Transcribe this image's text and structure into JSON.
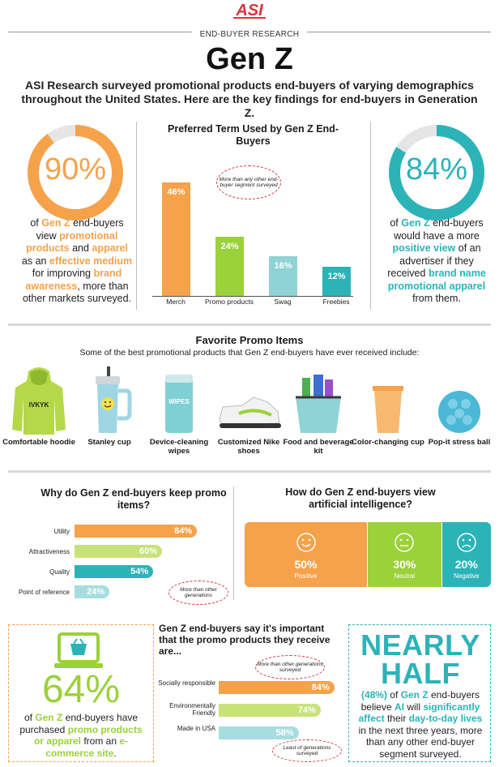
{
  "header": {
    "logo_text": "ASI",
    "subtitle": "END-BUYER RESEARCH",
    "title": "Gen Z",
    "intro": "ASI Research surveyed promotional products end-buyers of varying demographics throughout the United States. Here are the key findings for end-buyers in Generation Z."
  },
  "stat_left": {
    "pct": "90%",
    "value": 0.9,
    "text": [
      "of ",
      "Gen Z",
      " end-buyers view ",
      "promotional products",
      " and ",
      "apparel",
      " as an ",
      "effective medium",
      " for improving ",
      "brand awareness",
      ", more than other markets surveyed."
    ]
  },
  "stat_right": {
    "pct": "84%",
    "value": 0.84,
    "text": [
      "of ",
      "Gen Z",
      " end-buyers would have a more ",
      "positive view",
      " of an advertiser if they received ",
      "brand name promotional apparel",
      " from them."
    ]
  },
  "preferred_term": {
    "title": "Preferred Term Used by Gen Z End-Buyers",
    "annotation": "More than any other end-buyer segment surveyed"
  },
  "favorites": {
    "title": "Favorite Promo Items",
    "subtitle": "Some of the best promotional products that Gen Z end-buyers have ever received include:",
    "hoodie_print": "IVKYK",
    "wipes_print": "WIPES",
    "items": [
      "Comfortable hoodie",
      "Stanley cup",
      "Device-cleaning wipes",
      "Customized Nike shoes",
      "Food and beverage kit",
      "Color-changing cup",
      "Pop-it stress ball"
    ]
  },
  "keep": {
    "title": "Why do Gen Z end-buyers keep promo items?",
    "annotation": "More than other generations"
  },
  "ai": {
    "title": "How do Gen Z end-buyers view artificial intelligence?",
    "segments": [
      {
        "pct": "50%",
        "label": "Positive",
        "value": 50,
        "color": "#f5a24a"
      },
      {
        "pct": "30%",
        "label": "Neutral",
        "value": 30,
        "color": "#9bd13a"
      },
      {
        "pct": "20%",
        "label": "Negative",
        "value": 20,
        "color": "#2cb3b8"
      }
    ]
  },
  "ecommerce": {
    "pct": "64%",
    "text": [
      "of ",
      "Gen Z",
      " end-buyers have purchased ",
      "promo products or apparel",
      " from an ",
      "e-commerce site",
      "."
    ]
  },
  "important": {
    "title": "Gen Z end-buyers say it's important that the promo products they receive are...",
    "annotation_top": "More than other generations surveyed",
    "annotation_bottom": "Least of generations surveyed"
  },
  "nearly_half": {
    "headline_1": "NEARLY",
    "headline_2": "HALF",
    "text": [
      "(48%)",
      " of ",
      "Gen Z",
      " end-buyers believe ",
      "AI",
      " will ",
      "significantly affect",
      " their ",
      "day-to-day lives",
      " in the next three years, more than any other end-buyer segment surveyed."
    ]
  },
  "chart_data": [
    {
      "type": "bar",
      "title": "Preferred Term Used by Gen Z End-Buyers",
      "categories": [
        "Merch",
        "Promo products",
        "Swag",
        "Freebies"
      ],
      "values": [
        46,
        24,
        16,
        12
      ],
      "labels": [
        "46%",
        "24%",
        "16%",
        "12%"
      ],
      "colors": [
        "#f5a24a",
        "#9bd13a",
        "#8fd3d6",
        "#2cb3b8"
      ],
      "ylim": [
        0,
        50
      ]
    },
    {
      "type": "bar",
      "orientation": "horizontal",
      "title": "Why do Gen Z end-buyers keep promo items?",
      "categories": [
        "Utility",
        "Attractiveness",
        "Quality",
        "Point of reference"
      ],
      "values": [
        84,
        60,
        54,
        24
      ],
      "labels": [
        "84%",
        "60%",
        "54%",
        "24%"
      ],
      "colors": [
        "#f5a24a",
        "#c8e27a",
        "#2cb3b8",
        "#a7dde0"
      ],
      "xlim": [
        0,
        100
      ]
    },
    {
      "type": "bar",
      "orientation": "horizontal",
      "title": "Gen Z end-buyers say it's important that the promo products they receive are...",
      "categories": [
        "Socially responsible",
        "Environmentally Friendly",
        "Made in USA"
      ],
      "values": [
        84,
        74,
        58
      ],
      "labels": [
        "84%",
        "74%",
        "58%"
      ],
      "colors": [
        "#f5a24a",
        "#c8e27a",
        "#a7dde0"
      ],
      "xlim": [
        0,
        100
      ]
    }
  ]
}
